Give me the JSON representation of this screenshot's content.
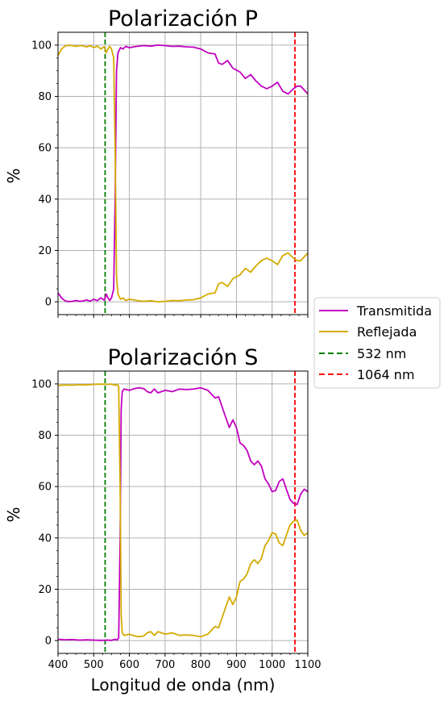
{
  "colors": {
    "transmitida": "#c000c0",
    "reflejada": "#d4aa00",
    "line532": "#008000",
    "line1064": "#ff0000",
    "grid": "#b0b0b0"
  },
  "legend": {
    "placement": "center-right",
    "entries": [
      "Transmitida",
      "Reflejada",
      "532 nm",
      "1064 nm"
    ]
  },
  "xlabel": "Longitud de onda (nm)",
  "chart_data": [
    {
      "type": "line",
      "title": "Polarización P",
      "xlabel": "",
      "ylabel": "%",
      "xlim": [
        400,
        1100
      ],
      "ylim": [
        -5,
        105
      ],
      "grid": true,
      "xticks": [
        400,
        500,
        600,
        700,
        800,
        900,
        1000,
        1100
      ],
      "yticks": [
        0,
        20,
        40,
        60,
        80,
        100
      ],
      "vlines": [
        {
          "x": 532,
          "label": "532 nm",
          "style": "dashed"
        },
        {
          "x": 1064,
          "label": "1064 nm",
          "style": "dashed"
        }
      ],
      "series": [
        {
          "name": "Transmitida",
          "points": [
            [
              400,
              3.5
            ],
            [
              410,
              1.5
            ],
            [
              420,
              0.3
            ],
            [
              430,
              0.1
            ],
            [
              440,
              0.2
            ],
            [
              450,
              0.5
            ],
            [
              460,
              0.2
            ],
            [
              470,
              0.3
            ],
            [
              480,
              0.7
            ],
            [
              490,
              0.2
            ],
            [
              500,
              1.0
            ],
            [
              510,
              0.4
            ],
            [
              520,
              1.5
            ],
            [
              530,
              0.6
            ],
            [
              535,
              3.0
            ],
            [
              540,
              1.5
            ],
            [
              545,
              0.5
            ],
            [
              550,
              1.5
            ],
            [
              556,
              5
            ],
            [
              560,
              40
            ],
            [
              564,
              90
            ],
            [
              568,
              97
            ],
            [
              575,
              99
            ],
            [
              582,
              98.5
            ],
            [
              590,
              99.5
            ],
            [
              600,
              99
            ],
            [
              620,
              99.5
            ],
            [
              640,
              99.8
            ],
            [
              660,
              99.6
            ],
            [
              680,
              100
            ],
            [
              700,
              99.8
            ],
            [
              720,
              99.5
            ],
            [
              740,
              99.6
            ],
            [
              760,
              99.3
            ],
            [
              780,
              99.2
            ],
            [
              800,
              98.5
            ],
            [
              820,
              97
            ],
            [
              840,
              96.5
            ],
            [
              850,
              93
            ],
            [
              860,
              92.5
            ],
            [
              875,
              94
            ],
            [
              890,
              91
            ],
            [
              910,
              89.5
            ],
            [
              925,
              87
            ],
            [
              940,
              88.5
            ],
            [
              955,
              86
            ],
            [
              970,
              84
            ],
            [
              985,
              83
            ],
            [
              1000,
              84
            ],
            [
              1015,
              85.5
            ],
            [
              1030,
              82
            ],
            [
              1045,
              81
            ],
            [
              1060,
              83
            ],
            [
              1070,
              84
            ],
            [
              1080,
              84
            ],
            [
              1090,
              82.5
            ],
            [
              1100,
              81
            ]
          ]
        },
        {
          "name": "Reflejada",
          "points": [
            [
              400,
              96
            ],
            [
              410,
              98.5
            ],
            [
              420,
              99.7
            ],
            [
              430,
              99.9
            ],
            [
              440,
              99.8
            ],
            [
              450,
              99.5
            ],
            [
              460,
              99.8
            ],
            [
              470,
              99.7
            ],
            [
              480,
              99.3
            ],
            [
              490,
              99.8
            ],
            [
              500,
              99
            ],
            [
              510,
              99.6
            ],
            [
              520,
              98.5
            ],
            [
              530,
              99.4
            ],
            [
              535,
              97
            ],
            [
              540,
              98.5
            ],
            [
              545,
              99.5
            ],
            [
              550,
              98.5
            ],
            [
              556,
              95
            ],
            [
              560,
              60
            ],
            [
              564,
              10
            ],
            [
              568,
              3
            ],
            [
              575,
              1
            ],
            [
              582,
              1.5
            ],
            [
              590,
              0.5
            ],
            [
              600,
              1
            ],
            [
              620,
              0.5
            ],
            [
              640,
              0.2
            ],
            [
              660,
              0.4
            ],
            [
              680,
              0
            ],
            [
              700,
              0.2
            ],
            [
              720,
              0.5
            ],
            [
              740,
              0.4
            ],
            [
              760,
              0.7
            ],
            [
              780,
              0.8
            ],
            [
              800,
              1.5
            ],
            [
              820,
              3
            ],
            [
              840,
              3.5
            ],
            [
              850,
              7
            ],
            [
              860,
              7.5
            ],
            [
              875,
              6
            ],
            [
              890,
              9
            ],
            [
              910,
              10.5
            ],
            [
              925,
              13
            ],
            [
              940,
              11.5
            ],
            [
              955,
              14
            ],
            [
              970,
              16
            ],
            [
              985,
              17
            ],
            [
              1000,
              16
            ],
            [
              1015,
              14.5
            ],
            [
              1030,
              18
            ],
            [
              1045,
              19
            ],
            [
              1060,
              17
            ],
            [
              1070,
              16
            ],
            [
              1080,
              16
            ],
            [
              1090,
              17.5
            ],
            [
              1100,
              19
            ]
          ]
        }
      ]
    },
    {
      "type": "line",
      "title": "Polarización S",
      "xlabel": "Longitud de onda (nm)",
      "ylabel": "%",
      "xlim": [
        400,
        1100
      ],
      "ylim": [
        -5,
        105
      ],
      "grid": true,
      "xticks": [
        400,
        500,
        600,
        700,
        800,
        900,
        1000,
        1100
      ],
      "yticks": [
        0,
        20,
        40,
        60,
        80,
        100
      ],
      "vlines": [
        {
          "x": 532,
          "label": "532 nm",
          "style": "dashed"
        },
        {
          "x": 1064,
          "label": "1064 nm",
          "style": "dashed"
        }
      ],
      "series": [
        {
          "name": "Transmitida",
          "points": [
            [
              400,
              0.5
            ],
            [
              420,
              0.3
            ],
            [
              440,
              0.4
            ],
            [
              460,
              0.2
            ],
            [
              480,
              0.3
            ],
            [
              500,
              0.2
            ],
            [
              520,
              0.1
            ],
            [
              540,
              0.2
            ],
            [
              550,
              0.1
            ],
            [
              560,
              0.5
            ],
            [
              565,
              0.2
            ],
            [
              570,
              1
            ],
            [
              574,
              40
            ],
            [
              577,
              90
            ],
            [
              580,
              97
            ],
            [
              585,
              98
            ],
            [
              600,
              97.5
            ],
            [
              610,
              98
            ],
            [
              625,
              98.5
            ],
            [
              640,
              98.2
            ],
            [
              650,
              97
            ],
            [
              660,
              96.5
            ],
            [
              670,
              98
            ],
            [
              680,
              96.5
            ],
            [
              690,
              97
            ],
            [
              700,
              97.5
            ],
            [
              720,
              97
            ],
            [
              740,
              98
            ],
            [
              760,
              97.8
            ],
            [
              780,
              98
            ],
            [
              800,
              98.5
            ],
            [
              820,
              97.5
            ],
            [
              840,
              94.5
            ],
            [
              850,
              95
            ],
            [
              860,
              91
            ],
            [
              870,
              87
            ],
            [
              880,
              83
            ],
            [
              890,
              86
            ],
            [
              900,
              83
            ],
            [
              910,
              77
            ],
            [
              920,
              76
            ],
            [
              930,
              74
            ],
            [
              940,
              70
            ],
            [
              950,
              68.5
            ],
            [
              960,
              70
            ],
            [
              970,
              68
            ],
            [
              980,
              63
            ],
            [
              990,
              61
            ],
            [
              1000,
              58
            ],
            [
              1010,
              58.5
            ],
            [
              1020,
              62
            ],
            [
              1030,
              63
            ],
            [
              1040,
              59
            ],
            [
              1050,
              55
            ],
            [
              1060,
              53.5
            ],
            [
              1070,
              53
            ],
            [
              1080,
              57
            ],
            [
              1090,
              59
            ],
            [
              1100,
              58
            ]
          ]
        },
        {
          "name": "Reflejada",
          "points": [
            [
              400,
              99.4
            ],
            [
              420,
              99.6
            ],
            [
              440,
              99.5
            ],
            [
              460,
              99.7
            ],
            [
              480,
              99.6
            ],
            [
              500,
              99.8
            ],
            [
              520,
              99.9
            ],
            [
              540,
              99.8
            ],
            [
              550,
              99.9
            ],
            [
              560,
              99.5
            ],
            [
              565,
              99.8
            ],
            [
              570,
              99
            ],
            [
              574,
              60
            ],
            [
              577,
              10
            ],
            [
              580,
              3
            ],
            [
              585,
              2
            ],
            [
              600,
              2.5
            ],
            [
              610,
              2
            ],
            [
              625,
              1.5
            ],
            [
              640,
              1.8
            ],
            [
              650,
              3
            ],
            [
              660,
              3.5
            ],
            [
              670,
              2
            ],
            [
              680,
              3.5
            ],
            [
              690,
              3
            ],
            [
              700,
              2.5
            ],
            [
              720,
              3
            ],
            [
              740,
              2
            ],
            [
              760,
              2.2
            ],
            [
              780,
              2
            ],
            [
              800,
              1.5
            ],
            [
              820,
              2.5
            ],
            [
              840,
              5.5
            ],
            [
              850,
              5
            ],
            [
              860,
              9
            ],
            [
              870,
              13
            ],
            [
              880,
              17
            ],
            [
              890,
              14
            ],
            [
              900,
              17
            ],
            [
              910,
              23
            ],
            [
              920,
              24
            ],
            [
              930,
              26
            ],
            [
              940,
              30
            ],
            [
              950,
              31.5
            ],
            [
              960,
              30
            ],
            [
              970,
              32
            ],
            [
              980,
              37
            ],
            [
              990,
              39
            ],
            [
              1000,
              42
            ],
            [
              1010,
              41.5
            ],
            [
              1020,
              38
            ],
            [
              1030,
              37
            ],
            [
              1040,
              41
            ],
            [
              1050,
              45
            ],
            [
              1060,
              46.5
            ],
            [
              1070,
              47
            ],
            [
              1080,
              43
            ],
            [
              1090,
              41
            ],
            [
              1100,
              42
            ]
          ]
        }
      ]
    }
  ]
}
